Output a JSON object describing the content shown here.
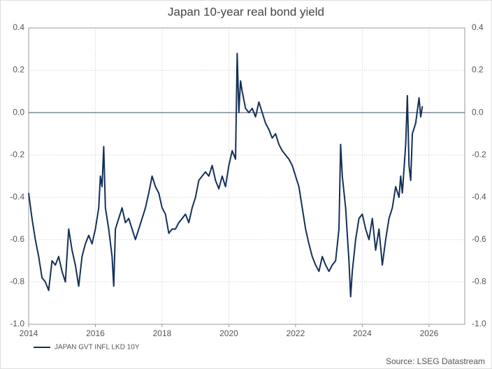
{
  "chart_data": {
    "type": "line",
    "title": "Japan 10-year real bond yield",
    "source": "Source: LSEG Datastream",
    "x": [
      2014.0,
      2014.1,
      2014.2,
      2014.3,
      2014.4,
      2014.5,
      2014.6,
      2014.7,
      2014.8,
      2014.9,
      2015.0,
      2015.1,
      2015.2,
      2015.3,
      2015.4,
      2015.5,
      2015.6,
      2015.7,
      2015.8,
      2015.9,
      2016.0,
      2016.1,
      2016.15,
      2016.2,
      2016.25,
      2016.3,
      2016.4,
      2016.5,
      2016.55,
      2016.6,
      2016.7,
      2016.8,
      2016.9,
      2017.0,
      2017.1,
      2017.2,
      2017.3,
      2017.4,
      2017.5,
      2017.6,
      2017.7,
      2017.8,
      2017.9,
      2018.0,
      2018.1,
      2018.2,
      2018.3,
      2018.4,
      2018.5,
      2018.6,
      2018.7,
      2018.8,
      2018.9,
      2019.0,
      2019.1,
      2019.2,
      2019.3,
      2019.4,
      2019.5,
      2019.6,
      2019.7,
      2019.8,
      2019.9,
      2020.0,
      2020.1,
      2020.2,
      2020.25,
      2020.3,
      2020.35,
      2020.4,
      2020.5,
      2020.6,
      2020.7,
      2020.8,
      2020.9,
      2021.0,
      2021.1,
      2021.2,
      2021.3,
      2021.4,
      2021.5,
      2021.6,
      2021.7,
      2021.8,
      2021.9,
      2022.0,
      2022.1,
      2022.2,
      2022.3,
      2022.4,
      2022.5,
      2022.6,
      2022.7,
      2022.8,
      2022.9,
      2023.0,
      2023.1,
      2023.2,
      2023.3,
      2023.35,
      2023.4,
      2023.5,
      2023.6,
      2023.65,
      2023.7,
      2023.8,
      2023.9,
      2024.0,
      2024.1,
      2024.2,
      2024.3,
      2024.4,
      2024.5,
      2024.6,
      2024.7,
      2024.8,
      2024.9,
      2025.0,
      2025.1,
      2025.15,
      2025.2,
      2025.3,
      2025.35,
      2025.4,
      2025.45,
      2025.5,
      2025.6,
      2025.7,
      2025.75,
      2025.8
    ],
    "series": [
      {
        "name": "JAPAN GVT INFL LKD 10Y",
        "color": "#14305a",
        "values": [
          -0.38,
          -0.5,
          -0.6,
          -0.68,
          -0.78,
          -0.8,
          -0.84,
          -0.7,
          -0.72,
          -0.68,
          -0.75,
          -0.8,
          -0.55,
          -0.65,
          -0.72,
          -0.82,
          -0.68,
          -0.62,
          -0.58,
          -0.62,
          -0.55,
          -0.45,
          -0.3,
          -0.35,
          -0.16,
          -0.45,
          -0.55,
          -0.68,
          -0.82,
          -0.55,
          -0.5,
          -0.45,
          -0.52,
          -0.5,
          -0.55,
          -0.6,
          -0.55,
          -0.5,
          -0.45,
          -0.38,
          -0.3,
          -0.35,
          -0.38,
          -0.45,
          -0.48,
          -0.57,
          -0.55,
          -0.55,
          -0.52,
          -0.5,
          -0.48,
          -0.52,
          -0.45,
          -0.4,
          -0.32,
          -0.3,
          -0.28,
          -0.3,
          -0.25,
          -0.32,
          -0.36,
          -0.3,
          -0.35,
          -0.25,
          -0.18,
          -0.22,
          0.28,
          0.0,
          0.15,
          0.1,
          0.02,
          0.0,
          0.02,
          -0.02,
          0.05,
          0.0,
          -0.05,
          -0.08,
          -0.12,
          -0.1,
          -0.15,
          -0.18,
          -0.2,
          -0.22,
          -0.25,
          -0.3,
          -0.35,
          -0.45,
          -0.55,
          -0.62,
          -0.68,
          -0.72,
          -0.75,
          -0.68,
          -0.72,
          -0.75,
          -0.72,
          -0.7,
          -0.55,
          -0.15,
          -0.3,
          -0.45,
          -0.7,
          -0.87,
          -0.75,
          -0.6,
          -0.5,
          -0.48,
          -0.55,
          -0.6,
          -0.5,
          -0.65,
          -0.55,
          -0.72,
          -0.6,
          -0.5,
          -0.45,
          -0.35,
          -0.4,
          -0.3,
          -0.38,
          -0.15,
          0.08,
          -0.25,
          -0.32,
          -0.1,
          -0.05,
          0.07,
          -0.02,
          0.03
        ]
      }
    ],
    "xlim": [
      2014,
      2027.07
    ],
    "xticks": [
      2014,
      2016,
      2018,
      2020,
      2022,
      2024,
      2026
    ],
    "ylim": [
      -1,
      0.4
    ],
    "yticks": [
      {
        "value": -1,
        "label": "-1.0"
      },
      -0.8,
      -0.6,
      -0.4,
      -0.2,
      {
        "value": 0,
        "label": "0.0"
      },
      0.2,
      0.4
    ],
    "grid": true,
    "legend": "bottom-left"
  }
}
